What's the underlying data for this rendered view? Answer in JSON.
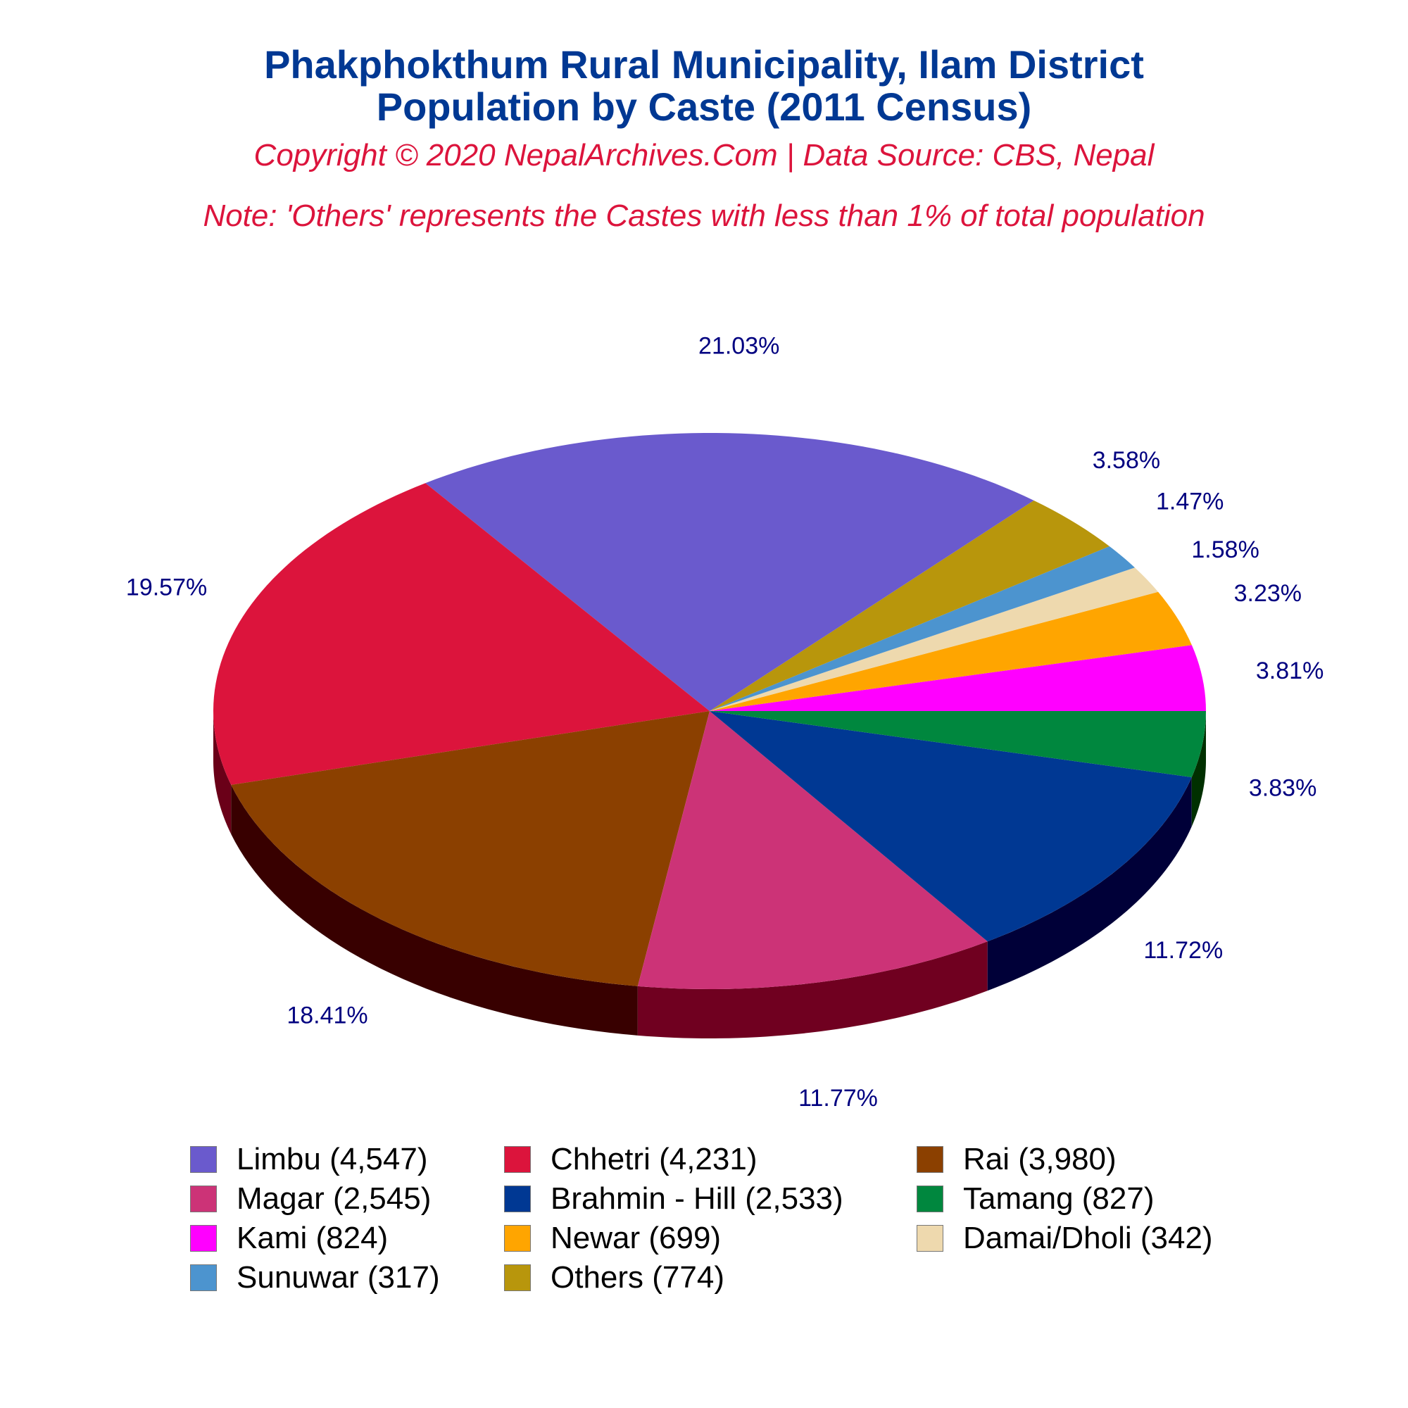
{
  "title": {
    "line1": "Phakphokthum Rural Municipality, Ilam District",
    "line2": "Population by Caste (2011 Census)"
  },
  "subtitle": "Copyright © 2020 NepalArchives.Com | Data Source: CBS, Nepal",
  "note": "Note: 'Others' represents the Castes with less than 1% of total population",
  "chart_data": {
    "type": "pie",
    "style": "3d",
    "start_angle_deg": 0,
    "direction": "counterclockwise",
    "legend_placement": "bottom",
    "slices": [
      {
        "name": "Kami",
        "value": 824,
        "percent_label": "3.81%",
        "color": "#FF00FF",
        "side_color": "#A000A0",
        "legend": "Kami (824)"
      },
      {
        "name": "Newar",
        "value": 699,
        "percent_label": "3.23%",
        "color": "#FFA500",
        "side_color": "#A06800",
        "legend": "Newar (699)"
      },
      {
        "name": "Damai/Dholi",
        "value": 342,
        "percent_label": "1.58%",
        "color": "#EED9AE",
        "side_color": "#9E8E6C",
        "legend": "Damai/Dholi (342)"
      },
      {
        "name": "Sunuwar",
        "value": 317,
        "percent_label": "1.47%",
        "color": "#4C94CF",
        "side_color": "#28547A",
        "legend": "Sunuwar (317)"
      },
      {
        "name": "Others",
        "value": 774,
        "percent_label": "3.58%",
        "color": "#B8960C",
        "side_color": "#6A5600",
        "legend": "Others (774)"
      },
      {
        "name": "Limbu",
        "value": 4547,
        "percent_label": "21.03%",
        "color": "#6A5ACD",
        "side_color": "#2E2468",
        "legend": "Limbu (4,547)"
      },
      {
        "name": "Chhetri",
        "value": 4231,
        "percent_label": "19.57%",
        "color": "#DC143C",
        "side_color": "#6A0018",
        "legend": "Chhetri (4,231)"
      },
      {
        "name": "Rai",
        "value": 3980,
        "percent_label": "18.41%",
        "color": "#8B4000",
        "side_color": "#380000",
        "legend": "Rai (3,980)"
      },
      {
        "name": "Magar",
        "value": 2545,
        "percent_label": "11.77%",
        "color": "#CC3377",
        "side_color": "#700020",
        "legend": "Magar (2,545)"
      },
      {
        "name": "Brahmin - Hill",
        "value": 2533,
        "percent_label": "11.72%",
        "color": "#003893",
        "side_color": "#000038",
        "legend": "Brahmin - Hill (2,533)"
      },
      {
        "name": "Tamang",
        "value": 827,
        "percent_label": "3.83%",
        "color": "#00873E",
        "side_color": "#003000",
        "legend": "Tamang (827)"
      }
    ],
    "legend_order": [
      "Limbu",
      "Chhetri",
      "Rai",
      "Magar",
      "Brahmin - Hill",
      "Tamang",
      "Kami",
      "Newar",
      "Damai/Dholi",
      "Sunuwar",
      "Others"
    ]
  }
}
